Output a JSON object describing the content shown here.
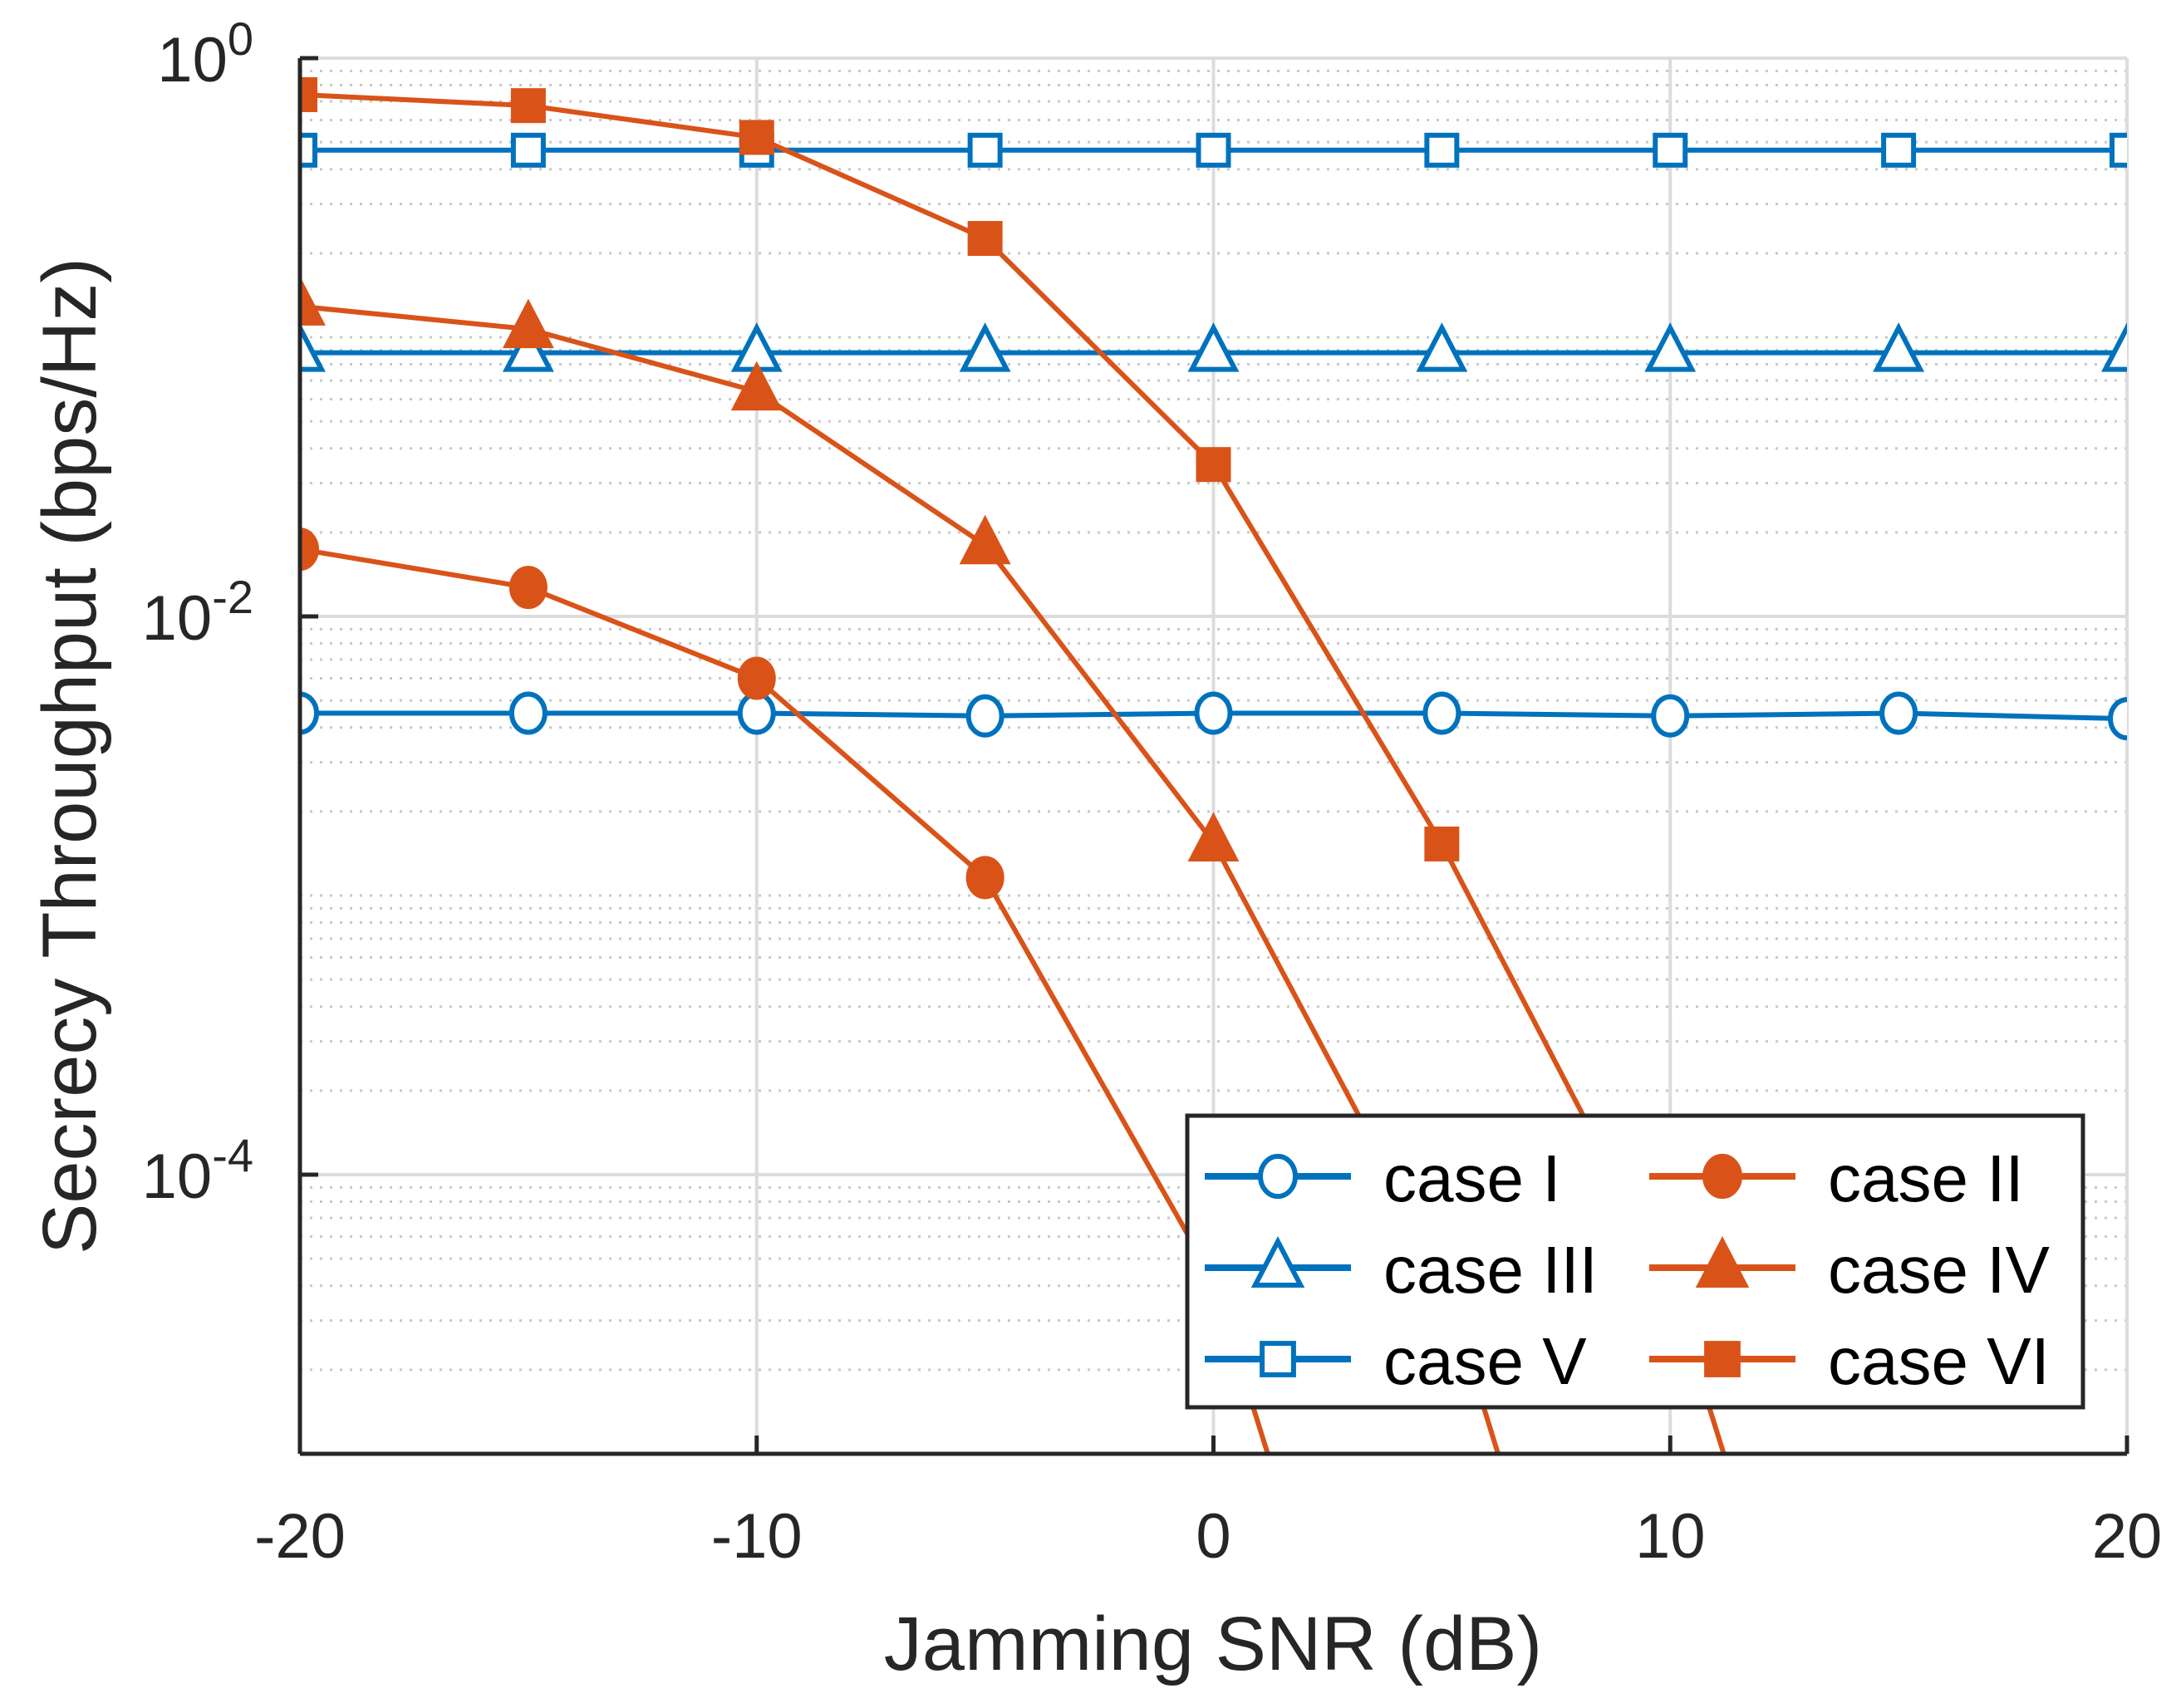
{
  "chart_data": {
    "type": "line",
    "title": "",
    "xlabel": "Jamming SNR (dB)",
    "ylabel": "Secrecy Throughput (bps/Hz)",
    "xscale": "linear",
    "yscale": "log",
    "xlim": [
      -20,
      20
    ],
    "ylim": [
      1e-05,
      1
    ],
    "grid": true,
    "legend_placement": "bottom-right",
    "legend_columns": 2,
    "x": [
      -20,
      -15,
      -10,
      -5,
      0,
      5,
      10,
      15,
      20
    ],
    "xticks": [
      {
        "v": -20,
        "label": "-20"
      },
      {
        "v": -10,
        "label": "-10"
      },
      {
        "v": 0,
        "label": "0"
      },
      {
        "v": 10,
        "label": "10"
      },
      {
        "v": 20,
        "label": "20"
      }
    ],
    "yticks": [
      {
        "v": 1,
        "base": "10",
        "exp": "0"
      },
      {
        "v": 0.01,
        "base": "10",
        "exp": "-2"
      },
      {
        "v": 0.0001,
        "base": "10",
        "exp": "-4"
      }
    ],
    "colors": {
      "blue": "#0072BD",
      "orange": "#D95319"
    },
    "series": [
      {
        "name": "case I",
        "color": "#0072BD",
        "marker": "circle",
        "filled": false,
        "values": [
          0.0045,
          0.0045,
          0.0045,
          0.0044,
          0.0045,
          0.0045,
          0.0044,
          0.0045,
          0.0043
        ]
      },
      {
        "name": "case II",
        "color": "#D95319",
        "marker": "circle",
        "filled": true,
        "values": [
          0.0174,
          0.0127,
          0.006,
          0.00116,
          4.2e-05,
          1e-07,
          null,
          null,
          null
        ]
      },
      {
        "name": "case III",
        "color": "#0072BD",
        "marker": "triangle",
        "filled": false,
        "values": [
          0.088,
          0.088,
          0.088,
          0.088,
          0.088,
          0.088,
          0.088,
          0.088,
          0.088
        ]
      },
      {
        "name": "case IV",
        "color": "#D95319",
        "marker": "triangle",
        "filled": true,
        "values": [
          0.129,
          0.107,
          0.064,
          0.018,
          0.00155,
          4.5e-05,
          1e-07,
          null,
          null
        ]
      },
      {
        "name": "case V",
        "color": "#0072BD",
        "marker": "square",
        "filled": false,
        "values": [
          0.468,
          0.468,
          0.468,
          0.468,
          0.468,
          0.468,
          0.468,
          0.468,
          0.468
        ]
      },
      {
        "name": "case VI",
        "color": "#D95319",
        "marker": "square",
        "filled": true,
        "values": [
          0.74,
          0.676,
          0.52,
          0.226,
          0.035,
          0.00153,
          4.1e-05,
          1e-07,
          null
        ]
      }
    ]
  }
}
